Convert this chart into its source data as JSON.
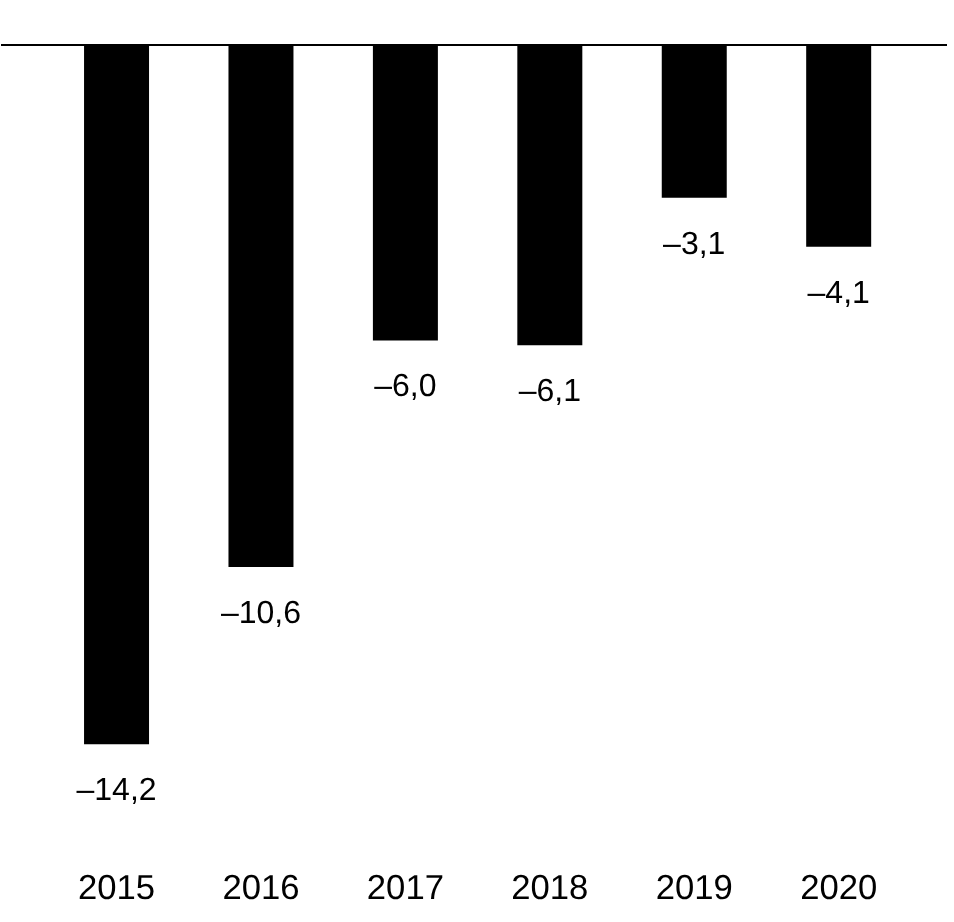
{
  "chart_data": {
    "type": "bar",
    "categories": [
      "2015",
      "2016",
      "2017",
      "2018",
      "2019",
      "2020"
    ],
    "values": [
      -14.2,
      -10.6,
      -6.0,
      -6.1,
      -3.1,
      -4.1
    ],
    "value_labels": [
      "–14,2",
      "–10,6",
      "–6,0",
      "–6,1",
      "–3,1",
      "–4,1"
    ],
    "color": "#000000",
    "tick_labels": "x",
    "grid": false
  }
}
